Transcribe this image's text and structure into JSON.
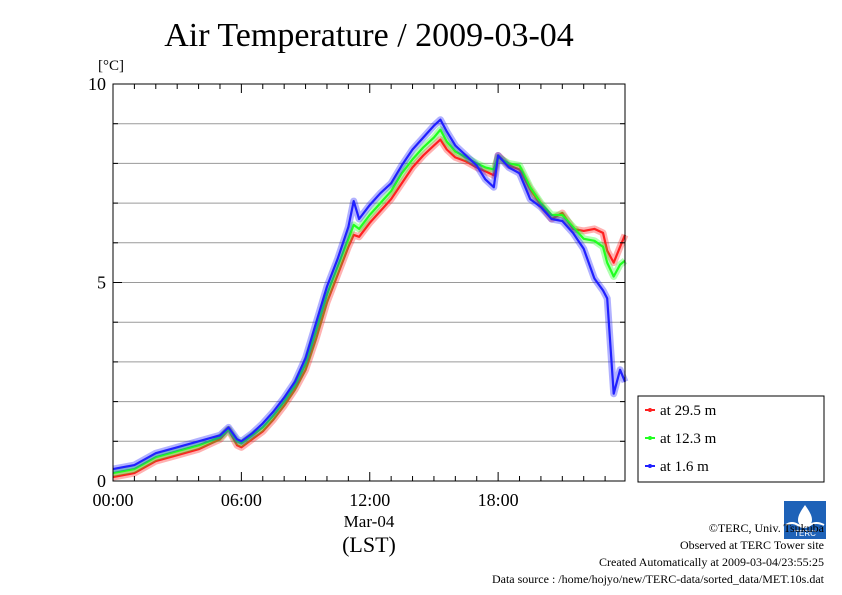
{
  "chart_data": {
    "type": "line",
    "title": "Air Temperature / 2009-03-04",
    "ylabel": "[°C]",
    "ylim": [
      0,
      10
    ],
    "yticks": [
      0,
      5,
      10
    ],
    "xlim_hours": [
      0,
      23.93
    ],
    "x_tick_labels": [
      "00:00",
      "06:00",
      "12:00",
      "18:00"
    ],
    "x_tick_hours": [
      0,
      6,
      12,
      18
    ],
    "date_label": "Mar-04",
    "timezone_label": "(LST)",
    "grid": true,
    "legend": "right-bottom, outside plot",
    "x_hours": [
      0,
      1,
      2,
      3,
      4,
      5,
      5.4,
      5.8,
      6,
      6.5,
      7,
      7.5,
      8,
      8.5,
      9,
      9.5,
      10,
      10.5,
      11,
      11.25,
      11.5,
      12,
      12.5,
      13,
      13.5,
      14,
      14.5,
      15,
      15.3,
      15.6,
      16,
      16.5,
      17,
      17.4,
      17.8,
      18,
      18.5,
      19,
      19.5,
      20,
      20.5,
      21,
      21.5,
      22,
      22.5,
      22.9,
      23.1,
      23.4,
      23.7,
      23.93
    ],
    "series": [
      {
        "name": "at 29.5 m",
        "color": "#ff2020",
        "values": [
          0.1,
          0.2,
          0.5,
          0.65,
          0.8,
          1.05,
          1.3,
          0.9,
          0.85,
          1.05,
          1.25,
          1.55,
          1.9,
          2.3,
          2.8,
          3.6,
          4.5,
          5.2,
          5.9,
          6.2,
          6.15,
          6.5,
          6.8,
          7.1,
          7.5,
          7.9,
          8.2,
          8.45,
          8.6,
          8.35,
          8.15,
          8.05,
          7.9,
          7.8,
          7.7,
          8.2,
          7.95,
          7.85,
          7.35,
          6.95,
          6.6,
          6.75,
          6.35,
          6.3,
          6.35,
          6.25,
          5.8,
          5.5,
          5.9,
          6.2
        ]
      },
      {
        "name": "at 12.3 m",
        "color": "#20ff20",
        "values": [
          0.2,
          0.3,
          0.6,
          0.75,
          0.9,
          1.1,
          1.3,
          1.0,
          0.95,
          1.15,
          1.35,
          1.65,
          2.0,
          2.4,
          2.95,
          3.8,
          4.7,
          5.4,
          6.1,
          6.45,
          6.35,
          6.7,
          7.0,
          7.3,
          7.75,
          8.1,
          8.4,
          8.65,
          8.85,
          8.55,
          8.3,
          8.15,
          8.0,
          7.9,
          7.85,
          8.15,
          8.0,
          7.95,
          7.4,
          7.0,
          6.7,
          6.7,
          6.4,
          6.1,
          6.05,
          5.9,
          5.5,
          5.15,
          5.45,
          5.55
        ]
      },
      {
        "name": "at 1.6 m",
        "color": "#2020ff",
        "values": [
          0.3,
          0.4,
          0.7,
          0.85,
          1.0,
          1.15,
          1.35,
          1.05,
          1.0,
          1.2,
          1.45,
          1.75,
          2.1,
          2.5,
          3.1,
          4.0,
          4.9,
          5.6,
          6.4,
          7.05,
          6.6,
          6.95,
          7.25,
          7.5,
          7.95,
          8.35,
          8.65,
          8.95,
          9.1,
          8.8,
          8.45,
          8.2,
          7.95,
          7.6,
          7.4,
          8.2,
          7.9,
          7.75,
          7.1,
          6.9,
          6.6,
          6.55,
          6.25,
          5.85,
          5.1,
          4.8,
          4.6,
          2.2,
          2.8,
          2.5
        ]
      }
    ]
  },
  "credits": {
    "copyright": "©TERC, Univ. Tsukuba",
    "site": "Observed at TERC Tower site",
    "created": "Created Automatically at 2009-03-04/23:55:25",
    "source": "Data source : /home/hojyo/new/TERC-data/sorted_data/MET.10s.dat",
    "logo_text": "TERC"
  }
}
